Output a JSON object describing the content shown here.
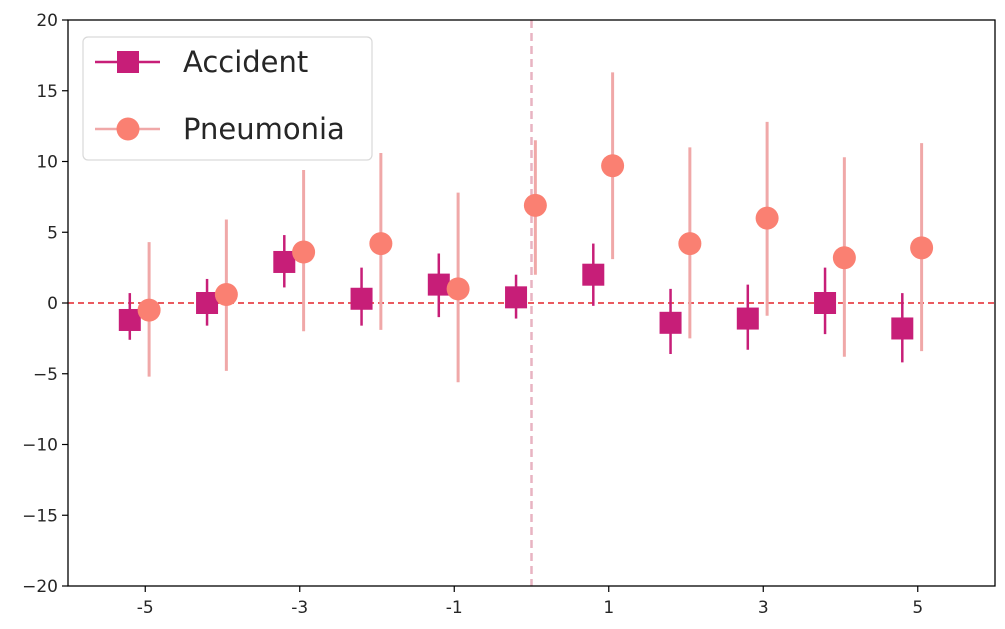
{
  "chart_data": {
    "type": "scatter",
    "title": "",
    "xlabel": "",
    "ylabel": "",
    "xlim": [
      -6,
      6
    ],
    "ylim": [
      -20,
      20
    ],
    "xticks": [
      -5,
      -3,
      -1,
      1,
      3,
      5
    ],
    "xtick_labels": [
      "-5",
      "-3",
      "-1",
      "1",
      "3",
      "5"
    ],
    "yticks": [
      -20,
      -15,
      -10,
      -5,
      0,
      5,
      10,
      15,
      20
    ],
    "ytick_labels": [
      "−20",
      "−15",
      "−10",
      "−5",
      "0",
      "5",
      "10",
      "15",
      "20"
    ],
    "hline": {
      "y": 0,
      "color": "#e3242b",
      "style": "dashed"
    },
    "vline": {
      "x": 0,
      "color": "#e8b4c2",
      "style": "dashed"
    },
    "grid": false,
    "legend_position": "top-left",
    "series": [
      {
        "name": "Accident",
        "marker": "square",
        "color": "#c71e78",
        "x_offset": -0.2,
        "x": [
          -5,
          -4,
          -3,
          -2,
          -1,
          0,
          1,
          2,
          3,
          4,
          5
        ],
        "y": [
          -1.2,
          0.0,
          2.9,
          0.3,
          1.3,
          0.4,
          2.0,
          -1.4,
          -1.1,
          0.0,
          -1.8
        ],
        "err_low": [
          -2.6,
          -1.6,
          1.1,
          -1.6,
          -1.0,
          -1.1,
          -0.2,
          -3.6,
          -3.3,
          -2.2,
          -4.2
        ],
        "err_high": [
          0.7,
          1.7,
          4.8,
          2.5,
          3.5,
          2.0,
          4.2,
          1.0,
          1.3,
          2.5,
          0.7
        ]
      },
      {
        "name": "Pneumonia",
        "marker": "circle",
        "color": "#fa8072",
        "errcolor": "#f0a8a8",
        "x_offset": 0.05,
        "x": [
          -5,
          -4,
          -3,
          -2,
          -1,
          0,
          1,
          2,
          3,
          4,
          5
        ],
        "y": [
          -0.5,
          0.6,
          3.6,
          4.2,
          1.0,
          6.9,
          9.7,
          4.2,
          6.0,
          3.2,
          3.9
        ],
        "err_low": [
          -5.2,
          -4.8,
          -2.0,
          -1.9,
          -5.6,
          2.0,
          3.1,
          -2.5,
          -0.9,
          -3.8,
          -3.4
        ],
        "err_high": [
          4.3,
          5.9,
          9.4,
          10.6,
          7.8,
          11.5,
          16.3,
          11.0,
          12.8,
          10.3,
          11.3
        ]
      }
    ]
  }
}
